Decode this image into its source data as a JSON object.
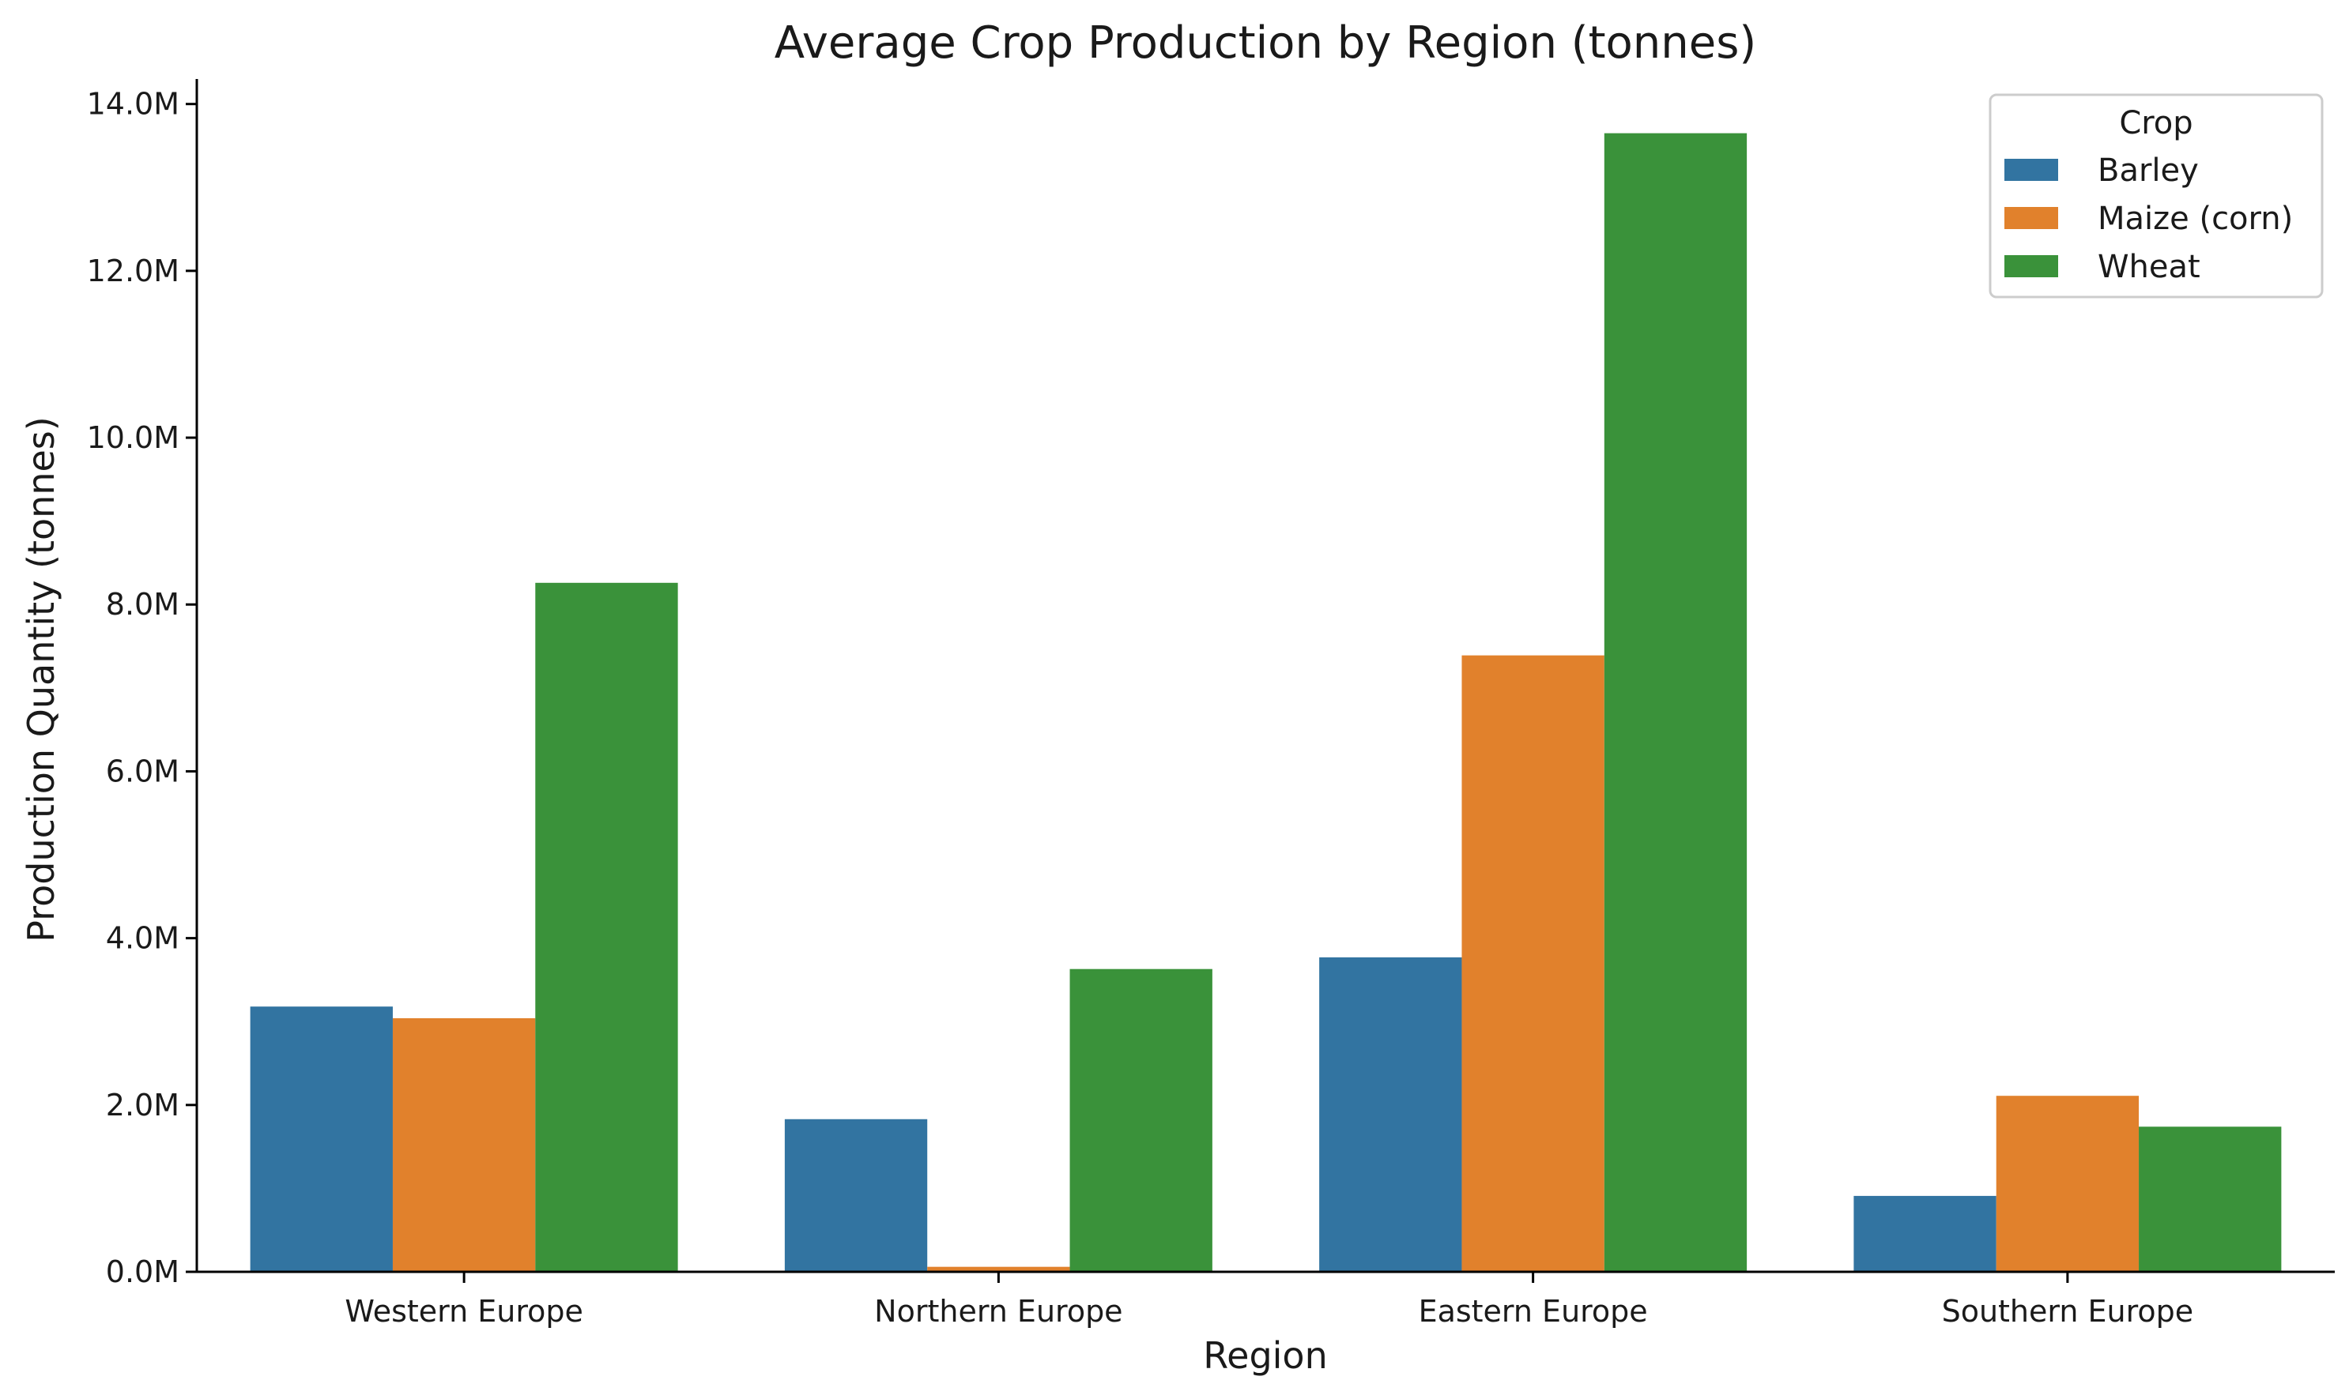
{
  "chart_data": {
    "type": "bar",
    "title": "Average Crop Production by Region (tonnes)",
    "xlabel": "Region",
    "ylabel": "Production Quantity (tonnes)",
    "categories": [
      "Western Europe",
      "Northern Europe",
      "Eastern Europe",
      "Southern Europe"
    ],
    "series": [
      {
        "name": "Barley",
        "color": "#3274a1",
        "values": [
          3180000,
          1830000,
          3770000,
          910000
        ]
      },
      {
        "name": "Maize (corn)",
        "color": "#e1812c",
        "values": [
          3040000,
          60000,
          7390000,
          2110000
        ]
      },
      {
        "name": "Wheat",
        "color": "#3a923a",
        "values": [
          8260000,
          3630000,
          13650000,
          1740000
        ]
      }
    ],
    "ylim": [
      0,
      14300000
    ],
    "yticks": [
      0,
      2000000,
      4000000,
      6000000,
      8000000,
      10000000,
      12000000,
      14000000
    ],
    "ytick_labels": [
      "0.0M",
      "2.0M",
      "4.0M",
      "6.0M",
      "8.0M",
      "10.0M",
      "12.0M",
      "14.0M"
    ],
    "legend": {
      "title": "Crop",
      "placement": "top-right"
    },
    "grid": false
  }
}
